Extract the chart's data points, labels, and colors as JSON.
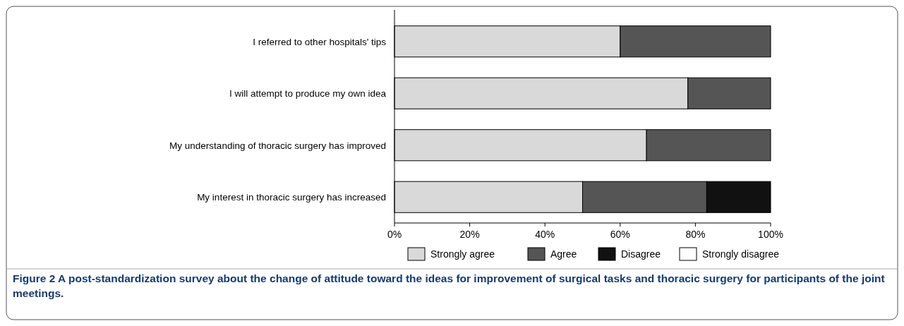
{
  "chart_data": {
    "type": "bar",
    "orientation": "horizontal",
    "stacked": true,
    "categories": [
      "I referred to other hospitals' tips",
      "I will attempt to produce my own idea",
      "My understanding of thoracic surgery has improved",
      "My interest in thoracic surgery has increased"
    ],
    "series": [
      {
        "name": "Strongly agree",
        "color": "#d9d9d9",
        "values": [
          60,
          78,
          67,
          50
        ]
      },
      {
        "name": "Agree",
        "color": "#555555",
        "values": [
          40,
          22,
          33,
          33
        ]
      },
      {
        "name": "Disagree",
        "color": "#111111",
        "values": [
          0,
          0,
          0,
          17
        ]
      },
      {
        "name": "Strongly disagree",
        "color": "#ffffff",
        "values": [
          0,
          0,
          0,
          0
        ]
      }
    ],
    "xlim": [
      0,
      100
    ],
    "xticks": [
      {
        "value": 0,
        "label": "0%"
      },
      {
        "value": 20,
        "label": "20%"
      },
      {
        "value": 40,
        "label": "40%"
      },
      {
        "value": 60,
        "label": "60%"
      },
      {
        "value": 80,
        "label": "80%"
      },
      {
        "value": 100,
        "label": "100%"
      }
    ],
    "legend": "bottom",
    "grid": false,
    "annotations": [
      "Figure 2 A post-standardization survey about the change of attitude toward the ideas for improvement of surgical tasks and thoracic surgery for participants of the joint meetings."
    ]
  }
}
